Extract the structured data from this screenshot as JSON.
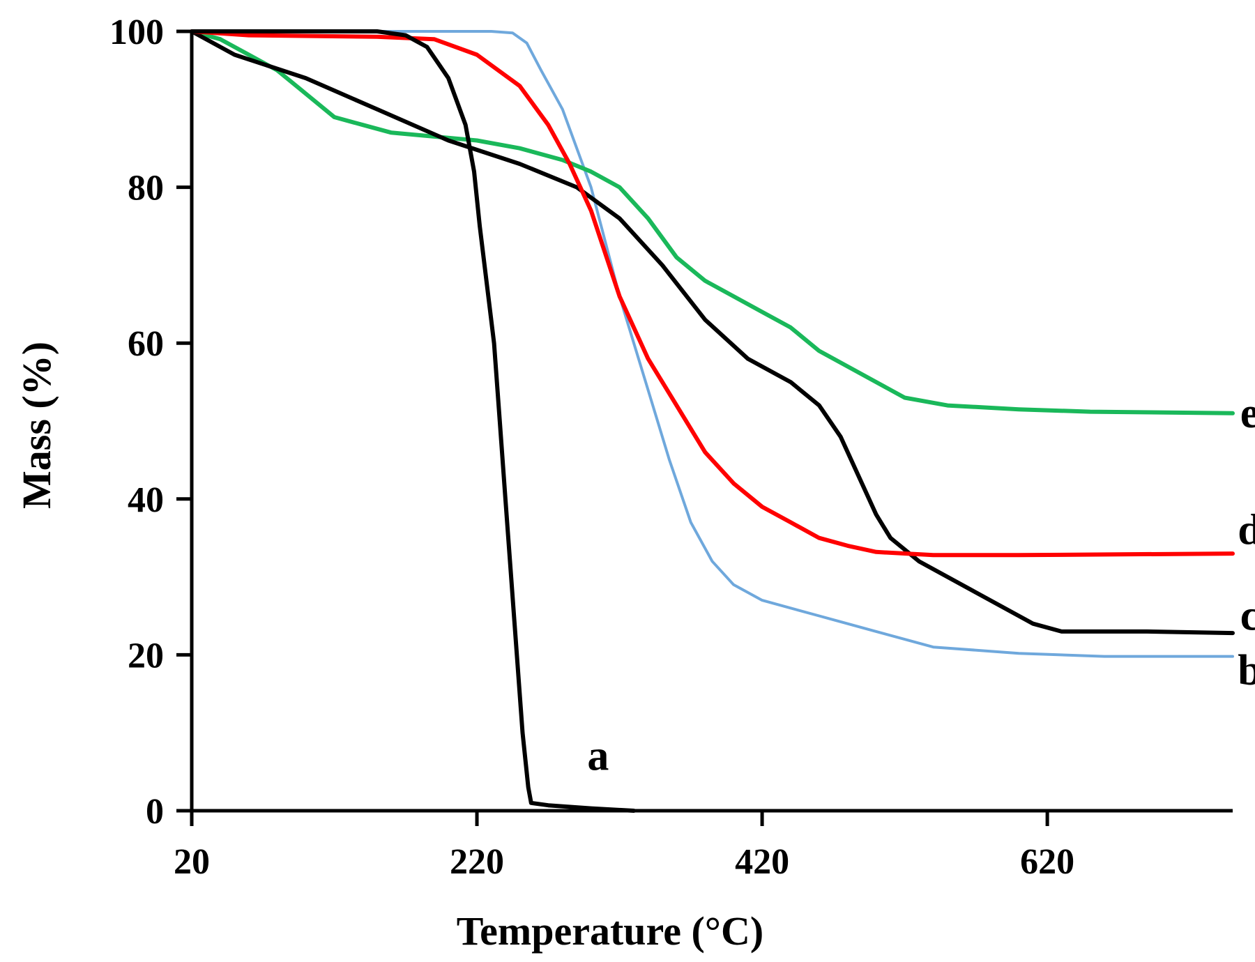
{
  "chart_data": {
    "type": "line",
    "title": "",
    "xlabel": "Temperature (°C)",
    "ylabel": "Mass (%)",
    "xlim": [
      20,
      750
    ],
    "ylim": [
      0,
      100
    ],
    "xticks": [
      20,
      220,
      420,
      620
    ],
    "yticks": [
      0,
      20,
      40,
      60,
      80,
      100
    ],
    "grid": false,
    "legend": "inline labels at line ends",
    "series": [
      {
        "name": "a",
        "color": "#000000",
        "points": [
          [
            20,
            100
          ],
          [
            100,
            100
          ],
          [
            150,
            100
          ],
          [
            170,
            99.5
          ],
          [
            185,
            98
          ],
          [
            200,
            94
          ],
          [
            212,
            88
          ],
          [
            218,
            82
          ],
          [
            222,
            75
          ],
          [
            228,
            66
          ],
          [
            232,
            60
          ],
          [
            236,
            50
          ],
          [
            240,
            40
          ],
          [
            244,
            30
          ],
          [
            248,
            20
          ],
          [
            252,
            10
          ],
          [
            256,
            3
          ],
          [
            258,
            1
          ],
          [
            270,
            0.7
          ],
          [
            300,
            0.3
          ],
          [
            330,
            0
          ]
        ]
      },
      {
        "name": "b",
        "color": "#6fa8dc",
        "points": [
          [
            20,
            100
          ],
          [
            100,
            100
          ],
          [
            200,
            100
          ],
          [
            230,
            100
          ],
          [
            245,
            99.8
          ],
          [
            255,
            98.5
          ],
          [
            265,
            95
          ],
          [
            280,
            90
          ],
          [
            300,
            80
          ],
          [
            320,
            66
          ],
          [
            340,
            54
          ],
          [
            355,
            45
          ],
          [
            370,
            37
          ],
          [
            385,
            32
          ],
          [
            400,
            29
          ],
          [
            420,
            27
          ],
          [
            460,
            25
          ],
          [
            500,
            23
          ],
          [
            540,
            21
          ],
          [
            600,
            20.2
          ],
          [
            660,
            19.8
          ],
          [
            750,
            19.8
          ]
        ]
      },
      {
        "name": "c",
        "color": "#000000",
        "points": [
          [
            20,
            100
          ],
          [
            50,
            97
          ],
          [
            100,
            94
          ],
          [
            150,
            90
          ],
          [
            200,
            86
          ],
          [
            250,
            83
          ],
          [
            290,
            80
          ],
          [
            320,
            76
          ],
          [
            350,
            70
          ],
          [
            380,
            63
          ],
          [
            410,
            58
          ],
          [
            440,
            55
          ],
          [
            460,
            52
          ],
          [
            475,
            48
          ],
          [
            490,
            42
          ],
          [
            500,
            38
          ],
          [
            510,
            35
          ],
          [
            530,
            32
          ],
          [
            570,
            28
          ],
          [
            610,
            24
          ],
          [
            630,
            23
          ],
          [
            690,
            23
          ],
          [
            750,
            22.8
          ]
        ]
      },
      {
        "name": "d",
        "color": "#ff0000",
        "points": [
          [
            20,
            100
          ],
          [
            60,
            99.5
          ],
          [
            150,
            99.3
          ],
          [
            190,
            99
          ],
          [
            220,
            97
          ],
          [
            250,
            93
          ],
          [
            270,
            88
          ],
          [
            285,
            83
          ],
          [
            300,
            77
          ],
          [
            320,
            66
          ],
          [
            340,
            58
          ],
          [
            360,
            52
          ],
          [
            380,
            46
          ],
          [
            400,
            42
          ],
          [
            420,
            39
          ],
          [
            440,
            37
          ],
          [
            460,
            35
          ],
          [
            480,
            34
          ],
          [
            500,
            33.2
          ],
          [
            540,
            32.8
          ],
          [
            600,
            32.8
          ],
          [
            750,
            33
          ]
        ]
      },
      {
        "name": "e",
        "color": "#1ab85a",
        "points": [
          [
            20,
            100
          ],
          [
            40,
            99
          ],
          [
            60,
            97
          ],
          [
            80,
            95
          ],
          [
            100,
            92
          ],
          [
            120,
            89
          ],
          [
            140,
            88
          ],
          [
            160,
            87
          ],
          [
            190,
            86.5
          ],
          [
            220,
            86
          ],
          [
            250,
            85
          ],
          [
            280,
            83.5
          ],
          [
            300,
            82
          ],
          [
            320,
            80
          ],
          [
            340,
            76
          ],
          [
            360,
            71
          ],
          [
            380,
            68
          ],
          [
            400,
            66
          ],
          [
            420,
            64
          ],
          [
            440,
            62
          ],
          [
            460,
            59
          ],
          [
            480,
            57
          ],
          [
            500,
            55
          ],
          [
            520,
            53
          ],
          [
            550,
            52
          ],
          [
            600,
            51.5
          ],
          [
            650,
            51.2
          ],
          [
            750,
            51
          ]
        ]
      }
    ],
    "annotations": [
      {
        "text": "a",
        "x": 305,
        "y": 7
      },
      {
        "text": "b",
        "x": 762,
        "y": 18
      },
      {
        "text": "c",
        "x": 762,
        "y": 25
      },
      {
        "text": "d",
        "x": 762,
        "y": 36
      },
      {
        "text": "e",
        "x": 762,
        "y": 51
      }
    ]
  }
}
